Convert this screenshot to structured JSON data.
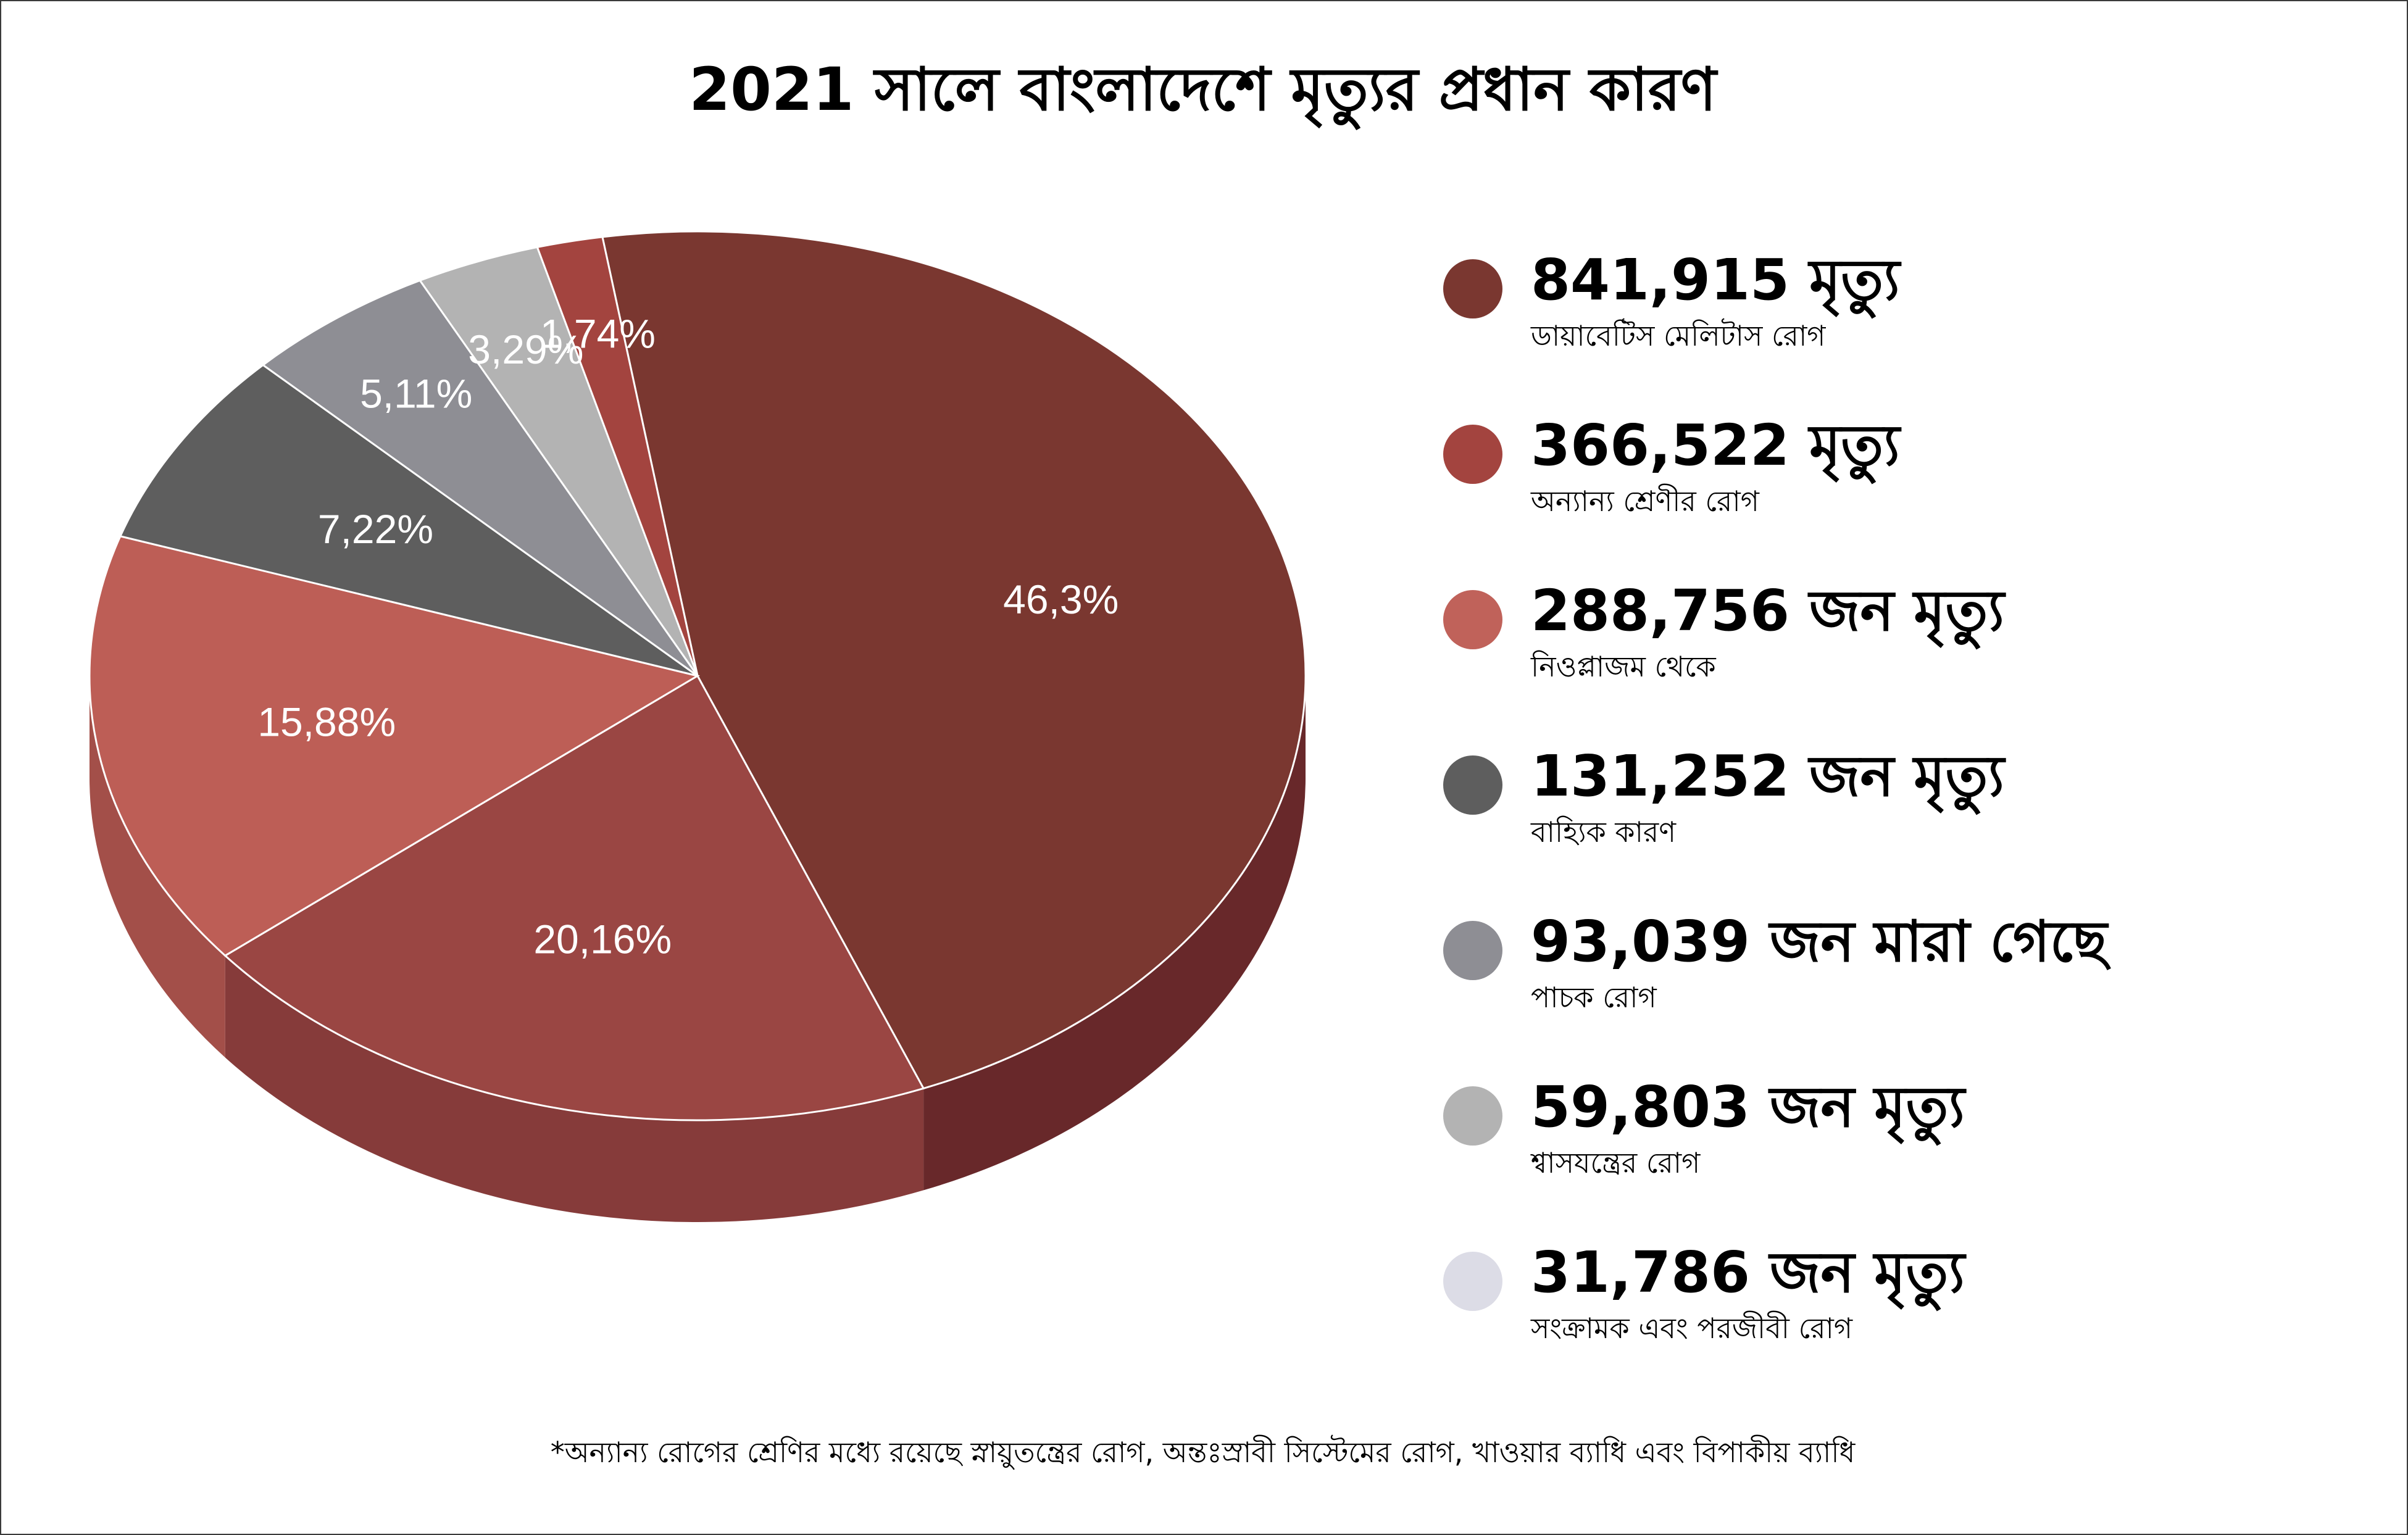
{
  "title": "2021 সালে বাংলাদেশে মৃত্যুর প্রধান কারণ",
  "footnote": "*অন্যান্য রোগের শ্রেণির মধ্যে রয়েছে স্নায়ুতন্ত্রের রোগ, অন্তঃস্রাবী সিস্টেমের রোগ, খাওয়ার ব্যাধি এবং বিপাকীয় ব্যাধি",
  "chart_data": {
    "type": "pie",
    "title": "2021 সালে বাংলাদেশে মৃত্যুর প্রধান কারণ",
    "slices": [
      {
        "percent_label": "46,3%",
        "value": 46.3,
        "color": "#7a3730",
        "side_color": "#68282a"
      },
      {
        "percent_label": "20,16%",
        "value": 20.16,
        "color": "#9a4643",
        "side_color": "#863b3a"
      },
      {
        "percent_label": "15,88%",
        "value": 15.88,
        "color": "#bd5e56",
        "side_color": "#a34f49"
      },
      {
        "percent_label": "7,22%",
        "value": 7.22,
        "color": "#5e5e5e",
        "side_color": "#4d4d4d"
      },
      {
        "percent_label": "5,11%",
        "value": 5.11,
        "color": "#8e8e94",
        "side_color": "#77777d"
      },
      {
        "percent_label": "3,29%",
        "value": 3.29,
        "color": "#b3b3b3",
        "side_color": "#9a9a9a"
      },
      {
        "percent_label": "1,74%",
        "value": 1.74,
        "color": "#a3443f",
        "side_color": "#8a3836"
      }
    ],
    "legend": [
      {
        "value_text": "841,915 মৃত্যু",
        "label": "ডায়াবেটিস মেলিটাস রোগ",
        "color": "#7a3730"
      },
      {
        "value_text": "366,522 মৃত্যু",
        "label": "অন্যান্য শ্রেণীর রোগ",
        "color": "#a3443f"
      },
      {
        "value_text": "288,756 জন মৃত্যু",
        "label": "নিওপ্লাজম থেকে",
        "color": "#c0625a"
      },
      {
        "value_text": "131,252 জন মৃত্যু",
        "label": "বাহ্যিক কারণ",
        "color": "#5e5e5e"
      },
      {
        "value_text": "93,039 জন মারা গেছে",
        "label": "পাচক রোগ",
        "color": "#8e8e94"
      },
      {
        "value_text": "59,803 জন মৃত্যু",
        "label": "শ্বাসযন্ত্রের রোগ",
        "color": "#b3b3b3"
      },
      {
        "value_text": "31,786 জন মৃত্যু",
        "label": "সংক্রামক এবং পরজীবী রোগ",
        "color": "#dcdce6"
      }
    ]
  }
}
